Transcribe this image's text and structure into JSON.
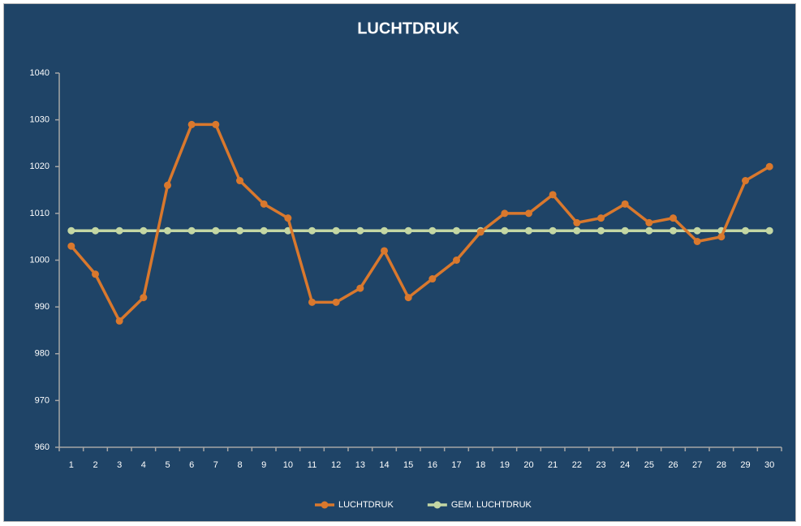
{
  "chart_data": {
    "type": "line",
    "title": "LUCHTDRUK",
    "categories": [
      1,
      2,
      3,
      4,
      5,
      6,
      7,
      8,
      9,
      10,
      11,
      12,
      13,
      14,
      15,
      16,
      17,
      18,
      19,
      20,
      21,
      22,
      23,
      24,
      25,
      26,
      27,
      28,
      29,
      30
    ],
    "series": [
      {
        "name": "LUCHTDRUK",
        "color": "#d9782d",
        "values": [
          1003,
          997,
          987,
          992,
          1016,
          1029,
          1029,
          1017,
          1012,
          1009,
          991,
          991,
          994,
          1002,
          992,
          996,
          1000,
          1006,
          1010,
          1010,
          1014,
          1008,
          1009,
          1012,
          1008,
          1009,
          1004,
          1005,
          1017,
          1020
        ]
      },
      {
        "name": "GEM. LUCHTDRUK",
        "color": "#c4d7a4",
        "values": [
          1006.3,
          1006.3,
          1006.3,
          1006.3,
          1006.3,
          1006.3,
          1006.3,
          1006.3,
          1006.3,
          1006.3,
          1006.3,
          1006.3,
          1006.3,
          1006.3,
          1006.3,
          1006.3,
          1006.3,
          1006.3,
          1006.3,
          1006.3,
          1006.3,
          1006.3,
          1006.3,
          1006.3,
          1006.3,
          1006.3,
          1006.3,
          1006.3,
          1006.3,
          1006.3
        ]
      }
    ],
    "ylim": [
      960,
      1040
    ],
    "yticks": [
      960,
      970,
      980,
      990,
      1000,
      1010,
      1020,
      1030,
      1040
    ],
    "grid": false,
    "legend": "bottom"
  }
}
